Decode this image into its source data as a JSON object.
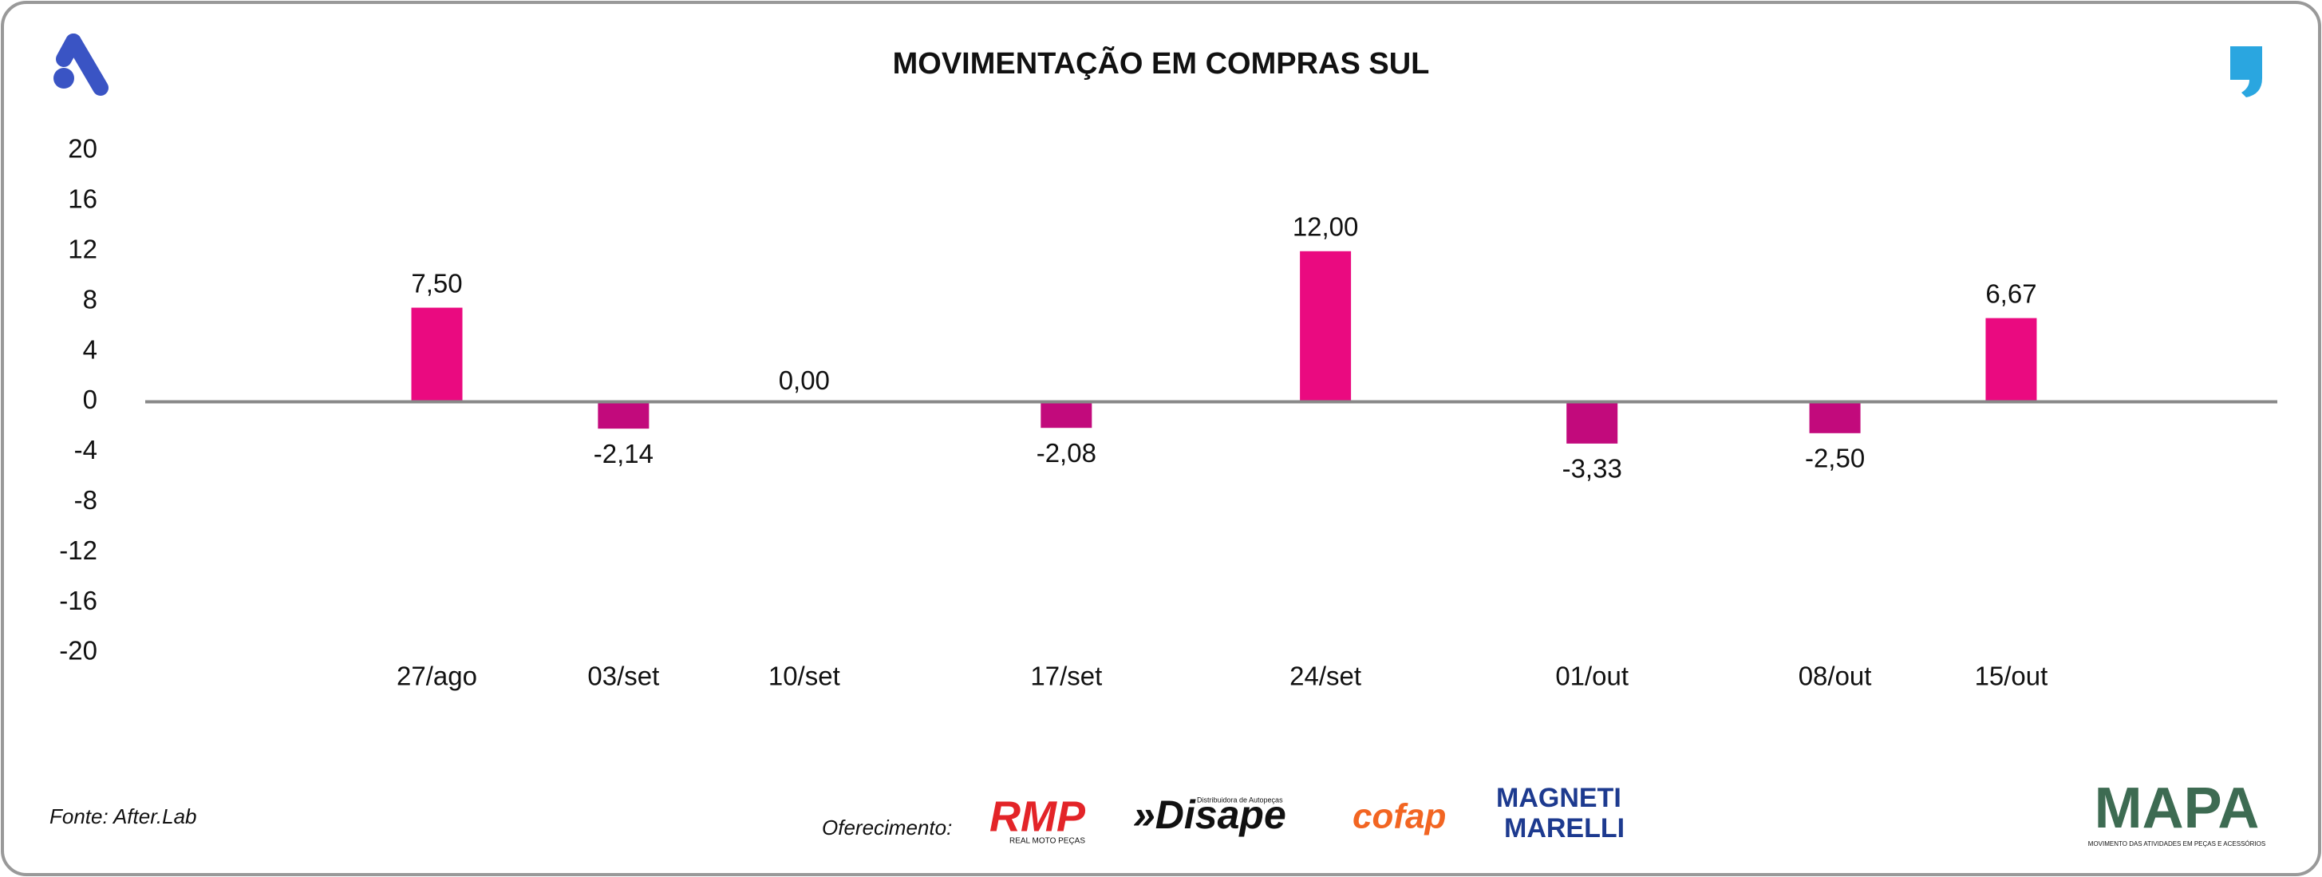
{
  "chart_data": {
    "type": "bar",
    "title": "MOVIMENTAÇÃO EM COMPRAS SUL",
    "categories": [
      "27/ago",
      "03/set",
      "10/set",
      "17/set",
      "24/set",
      "01/out",
      "08/out",
      "15/out"
    ],
    "values": [
      7.5,
      -2.14,
      0,
      -2.08,
      12,
      -3.33,
      -2.5,
      6.67
    ],
    "value_labels": [
      "7,50",
      "-2,14",
      "0,00",
      "-2,08",
      "12,00",
      "-3,33",
      "-2,50",
      "6,67"
    ],
    "colors": [
      "#ea0a80",
      "#c20a7c",
      "#c20a7c",
      "#c20a7c",
      "#ea0a80",
      "#c20a7c",
      "#c20a7c",
      "#ea0a80"
    ],
    "ylim": [
      -20,
      20
    ],
    "yticks": [
      20,
      16,
      12,
      8,
      4,
      0,
      -4,
      -8,
      -12,
      -16,
      -20
    ],
    "grid": false
  },
  "footer": {
    "source": "Fonte: After.Lab",
    "sponsor_label": "Oferecimento:",
    "sponsors": [
      "RMP",
      "REAL MOTO PEÇAS",
      "»Disape",
      "Distribuidora de Autopeças",
      "cofap",
      "MAGNETI",
      "MARELLI"
    ],
    "brand": "MAPA",
    "brand_tagline": "MOVIMENTO DAS ATIVIDADES EM PEÇAS E ACESSÓRIOS"
  }
}
